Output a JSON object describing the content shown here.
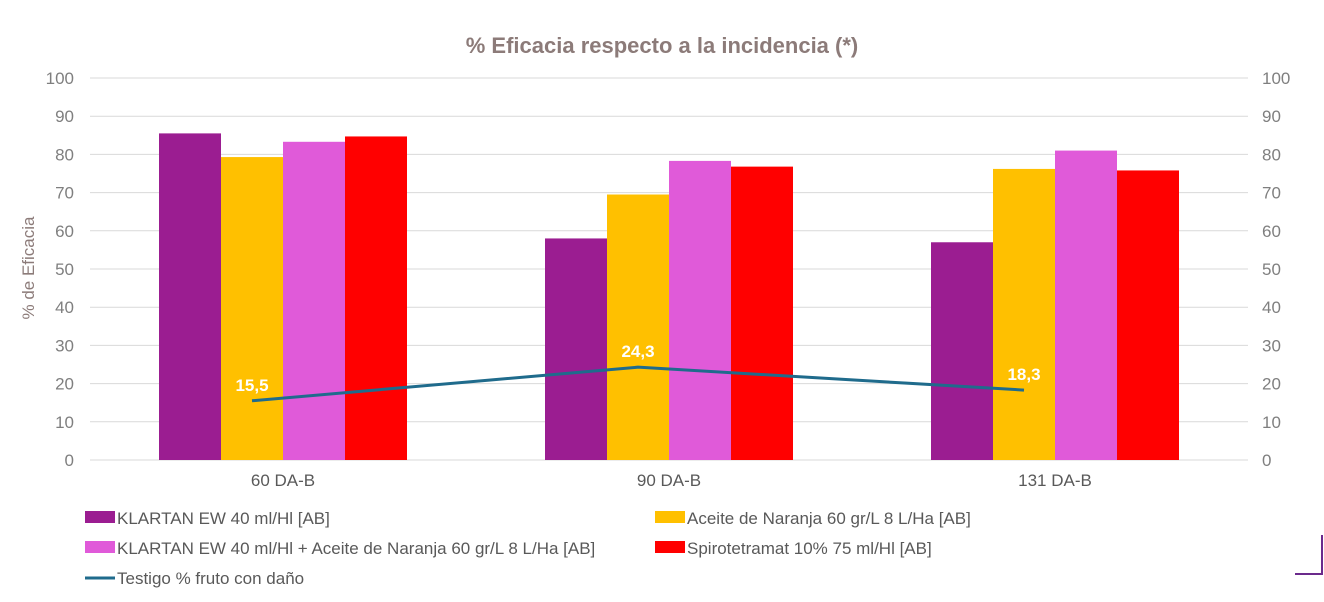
{
  "chart_data": {
    "type": "bar",
    "title": "% Eficacia respecto a la incidencia (*)",
    "ylabel": "% de Eficacia",
    "xlabel": "",
    "categories": [
      "60 DA-B",
      "90 DA-B",
      "131 DA-B"
    ],
    "ylim": [
      0,
      100
    ],
    "y_ticks": [
      "0",
      "10",
      "20",
      "30",
      "40",
      "50",
      "60",
      "70",
      "80",
      "90",
      "100"
    ],
    "grid": true,
    "legend_position": "bottom",
    "series": [
      {
        "name": "KLARTAN EW 40 ml/Hl [AB]",
        "color": "#9b1d91",
        "values": [
          85.5,
          58.0,
          57.0
        ]
      },
      {
        "name": "Aceite de Naranja 60 gr/L 8 L/Ha [AB]",
        "color": "#ffc000",
        "values": [
          79.3,
          69.5,
          76.2
        ]
      },
      {
        "name": "KLARTAN EW 40 ml/Hl + Aceite de Naranja 60 gr/L 8 L/Ha [AB]",
        "color": "#e05ad9",
        "values": [
          83.3,
          78.3,
          81.0
        ]
      },
      {
        "name": "Spirotetramat 10% 75 ml/Hl [AB]",
        "color": "#ff0000",
        "values": [
          84.7,
          76.8,
          75.8
        ]
      }
    ],
    "line_series": {
      "name": "Testigo % fruto con daño",
      "color": "#1f6b8c",
      "values": [
        15.5,
        24.3,
        18.3
      ],
      "labels": [
        "15,5",
        "24,3",
        "18,3"
      ]
    }
  }
}
